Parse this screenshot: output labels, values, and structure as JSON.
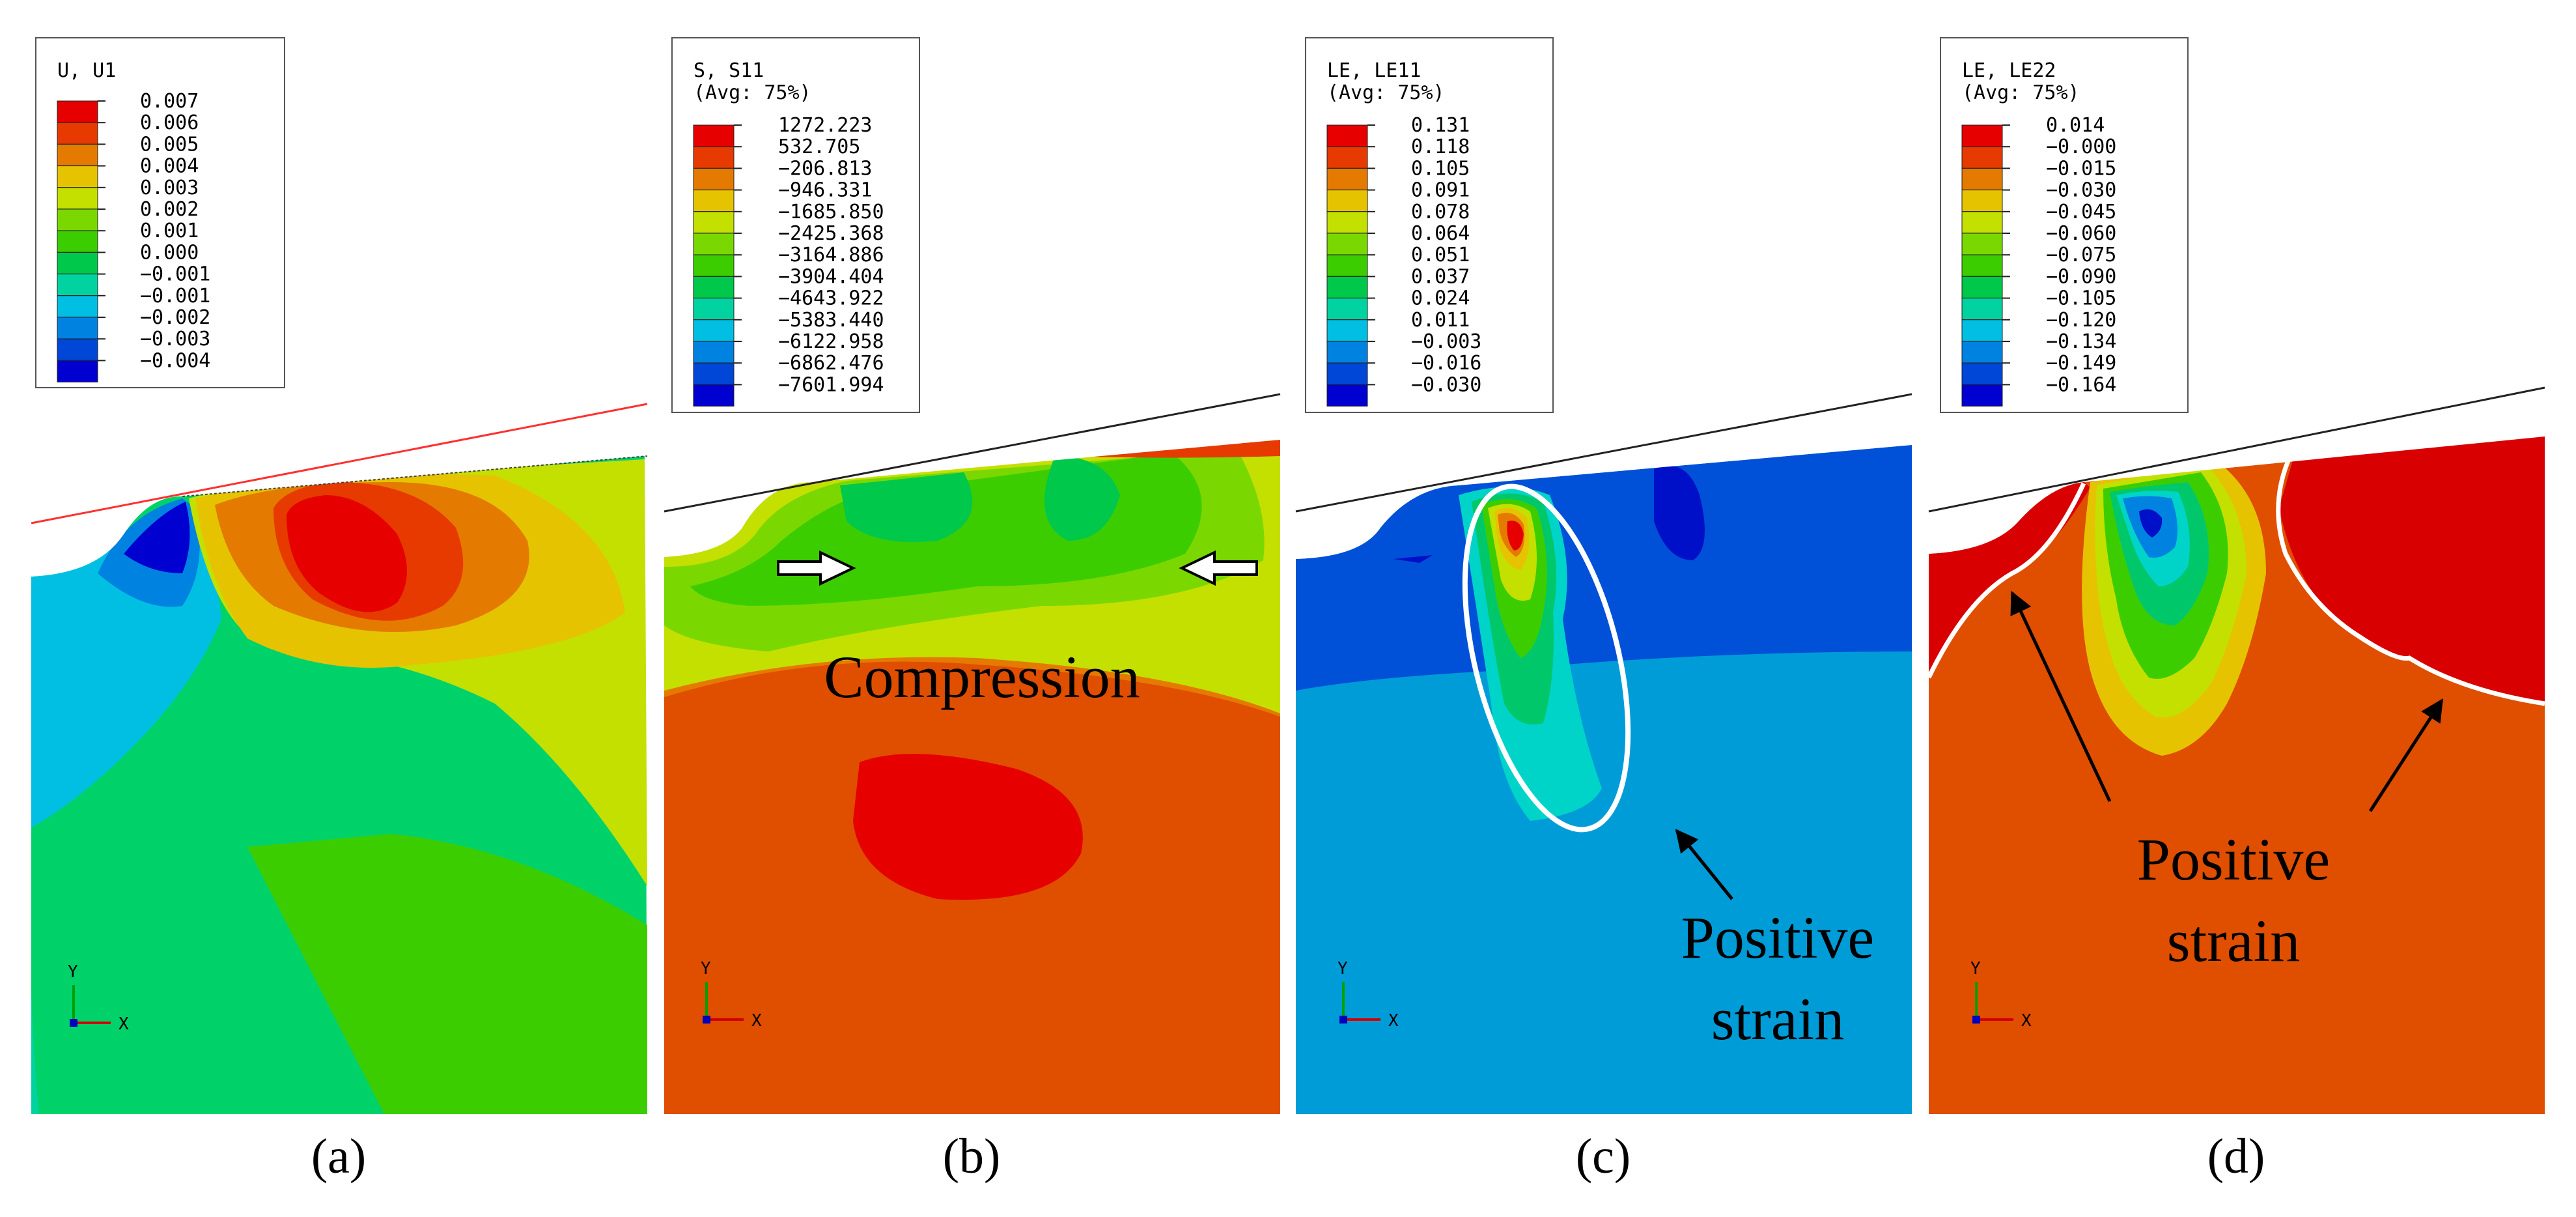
{
  "figure": {
    "legend_colors": [
      "#e60000",
      "#e63a00",
      "#e57a00",
      "#e5c300",
      "#c4e000",
      "#7ad800",
      "#3ccd00",
      "#00c84a",
      "#00d3a0",
      "#00bfe3",
      "#0082e0",
      "#0047d8",
      "#0000d0"
    ],
    "panels": [
      {
        "caption": "(a)",
        "legend_title": "U, U1",
        "legend_subtitle": "",
        "legend_values": [
          "0.007",
          "0.006",
          "0.005",
          "0.004",
          "0.003",
          "0.002",
          "0.001",
          "0.000",
          "−0.001",
          "−0.001",
          "−0.002",
          "−0.003",
          "−0.004"
        ],
        "annotations": [],
        "axis_labels": {
          "y": "Y",
          "x": "X"
        }
      },
      {
        "caption": "(b)",
        "legend_title": "S, S11",
        "legend_subtitle": "(Avg: 75%)",
        "legend_values": [
          "1272.223",
          "532.705",
          "−206.813",
          "−946.331",
          "−1685.850",
          "−2425.368",
          "−3164.886",
          "−3904.404",
          "−4643.922",
          "−5383.440",
          "−6122.958",
          "−6862.476",
          "−7601.994"
        ],
        "annotations": [
          "Compression"
        ],
        "axis_labels": {
          "y": "Y",
          "x": "X"
        }
      },
      {
        "caption": "(c)",
        "legend_title": "LE, LE11",
        "legend_subtitle": "(Avg: 75%)",
        "legend_values": [
          "0.131",
          "0.118",
          "0.105",
          "0.091",
          "0.078",
          "0.064",
          "0.051",
          "0.037",
          "0.024",
          "0.011",
          "−0.003",
          "−0.016",
          "−0.030"
        ],
        "annotations": [
          "Positive",
          "strain"
        ],
        "axis_labels": {
          "y": "Y",
          "x": "X"
        }
      },
      {
        "caption": "(d)",
        "legend_title": "LE, LE22",
        "legend_subtitle": "(Avg: 75%)",
        "legend_values": [
          "0.014",
          "−0.000",
          "−0.015",
          "−0.030",
          "−0.045",
          "−0.060",
          "−0.075",
          "−0.090",
          "−0.105",
          "−0.120",
          "−0.134",
          "−0.149",
          "−0.164"
        ],
        "annotations": [
          "Positive",
          "strain"
        ],
        "axis_labels": {
          "y": "Y",
          "x": "X"
        }
      }
    ]
  }
}
